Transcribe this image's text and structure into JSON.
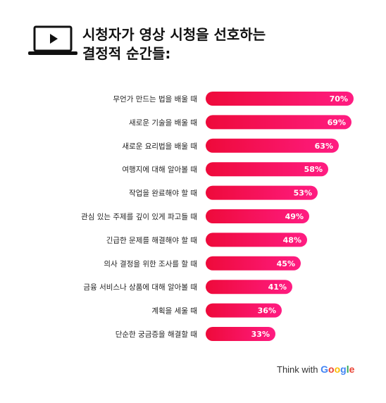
{
  "header": {
    "title_line1": "시청자가 영상 시청을 선호하는",
    "title_line2": "결정적 순간들:",
    "icon": "laptop-play-icon"
  },
  "chart_data": {
    "type": "bar",
    "orientation": "horizontal",
    "categories": [
      "무언가 만드는 법을 배울 때",
      "새로운 기술을 배울 때",
      "새로운 요리법을 배울 때",
      "여행지에 대해 알아볼 때",
      "작업을 완료해야 할 때",
      "관심 있는 주제를 깊이 있게 파고들 때",
      "긴급한 문제를 해결해야 할 때",
      "의사 결정을 위한 조사를 할 때",
      "금융 서비스나 상품에 대해 알아볼 때",
      "계획을 세울 때",
      "단순한 궁금증을 해결할 때"
    ],
    "values": [
      70,
      69,
      63,
      58,
      53,
      49,
      48,
      45,
      41,
      36,
      33
    ],
    "value_labels": [
      "70%",
      "69%",
      "63%",
      "58%",
      "53%",
      "49%",
      "48%",
      "45%",
      "41%",
      "36%",
      "33%"
    ],
    "unit": "%",
    "xlim": [
      0,
      70
    ],
    "grid": false,
    "legend": "none",
    "colors": {
      "bar_start": "#ee0a3a",
      "bar_end": "#ff1c82",
      "label": "#ffffff"
    }
  },
  "footer": {
    "brand_prefix": "Think with ",
    "brand_google": [
      "G",
      "o",
      "o",
      "g",
      "l",
      "e"
    ],
    "brand_colors": [
      "#4285F4",
      "#EA4335",
      "#FBBC05",
      "#4285F4",
      "#34A853",
      "#EA4335"
    ]
  }
}
